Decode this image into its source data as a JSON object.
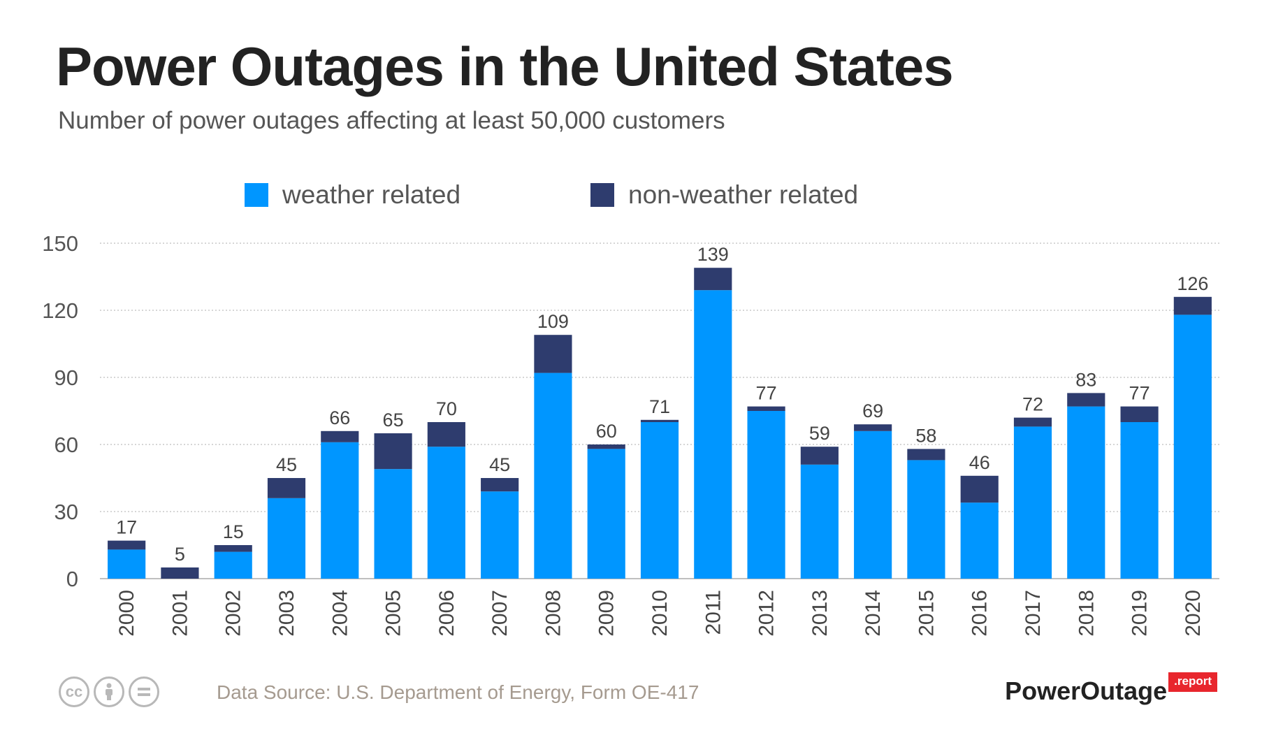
{
  "title": "Power Outages in the United States",
  "subtitle": "Number of power outages affecting at least 50,000 customers",
  "legend": [
    {
      "label": "weather related",
      "color": "#0096ff"
    },
    {
      "label": "non-weather related",
      "color": "#2e3c6e"
    }
  ],
  "footer": {
    "source": "Data Source: U.S. Department of Energy, Form OE-417",
    "license_icons": [
      "creative-commons-icon",
      "attribution-icon",
      "no-derivatives-icon"
    ],
    "brand": "PowerOutage",
    "brand_badge": ".report"
  },
  "chart_data": {
    "type": "bar",
    "stacked": true,
    "categories": [
      "2000",
      "2001",
      "2002",
      "2003",
      "2004",
      "2005",
      "2006",
      "2007",
      "2008",
      "2009",
      "2010",
      "2011",
      "2012",
      "2013",
      "2014",
      "2015",
      "2016",
      "2017",
      "2018",
      "2019",
      "2020"
    ],
    "series": [
      {
        "name": "weather related",
        "color": "#0096ff",
        "values": [
          13,
          0,
          12,
          36,
          61,
          49,
          59,
          39,
          92,
          58,
          70,
          129,
          75,
          51,
          66,
          53,
          34,
          68,
          77,
          70,
          118
        ]
      },
      {
        "name": "non-weather related",
        "color": "#2e3c6e",
        "values": [
          4,
          5,
          3,
          9,
          5,
          16,
          11,
          6,
          17,
          2,
          1,
          10,
          2,
          8,
          3,
          5,
          12,
          4,
          6,
          7,
          8
        ]
      }
    ],
    "totals": [
      17,
      5,
      15,
      45,
      66,
      65,
      70,
      45,
      109,
      60,
      71,
      139,
      77,
      59,
      69,
      58,
      46,
      72,
      83,
      77,
      126
    ],
    "yticks": [
      0,
      30,
      60,
      90,
      120,
      150
    ],
    "ylim": [
      0,
      150
    ],
    "grid": true,
    "legend_position": "top"
  }
}
